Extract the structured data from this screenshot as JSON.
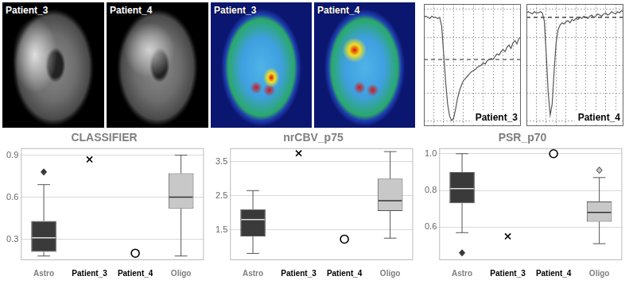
{
  "images": [
    {
      "label": "Patient_3"
    },
    {
      "label": "Patient_4"
    }
  ],
  "perfusion_maps": [
    {
      "label": "Patient_3"
    },
    {
      "label": "Patient_4"
    }
  ],
  "chart_data": [
    {
      "type": "line",
      "title": "Patient_3",
      "color": "#555555",
      "line_style": "solid",
      "grid": true,
      "tick_labels": false,
      "x": [
        0,
        1,
        2,
        3,
        4,
        5,
        6,
        7,
        8,
        9,
        10,
        11,
        12,
        13,
        14,
        15,
        16,
        17,
        18,
        19,
        20,
        21,
        22,
        23,
        24,
        25,
        26,
        27,
        28,
        29,
        30,
        31,
        32,
        33,
        34,
        35,
        36,
        37,
        38,
        39,
        40,
        41,
        42,
        43,
        44,
        45,
        46,
        47,
        48,
        49
      ],
      "values": [
        93,
        94,
        93,
        92,
        94,
        93,
        93,
        92,
        93,
        85,
        60,
        35,
        15,
        4,
        0,
        2,
        10,
        20,
        27,
        32,
        36,
        38,
        40,
        42,
        44,
        45,
        46,
        48,
        49,
        50,
        52,
        51,
        54,
        55,
        56,
        55,
        58,
        60,
        59,
        62,
        64,
        62,
        66,
        68,
        65,
        70,
        72,
        69,
        74,
        75
      ],
      "reference": 55,
      "xlim": [
        0,
        49
      ],
      "xticks": [
        0,
        5,
        10,
        15,
        20,
        25,
        30,
        35,
        40,
        45
      ],
      "ylim": [
        -5,
        105
      ],
      "yticks": [
        0,
        25,
        50,
        75,
        100
      ]
    },
    {
      "type": "line",
      "title": "Patient_4",
      "color": "#555555",
      "line_style": "solid",
      "grid": true,
      "tick_labels": false,
      "x": [
        0,
        1,
        2,
        3,
        4,
        5,
        6,
        7,
        8,
        9,
        10,
        11,
        12,
        13,
        14,
        15,
        16,
        17,
        18,
        19,
        20,
        21,
        22,
        23,
        24,
        25,
        26,
        27,
        28,
        29,
        30,
        31,
        32,
        33,
        34,
        35,
        36,
        37,
        38,
        39,
        40,
        41,
        42,
        43,
        44,
        45,
        46,
        47,
        48,
        49
      ],
      "values": [
        97,
        98,
        97,
        96,
        98,
        97,
        97,
        98,
        97,
        90,
        60,
        25,
        5,
        15,
        45,
        70,
        82,
        86,
        88,
        87,
        89,
        90,
        88,
        91,
        90,
        92,
        91,
        93,
        92,
        94,
        93,
        92,
        94,
        95,
        93,
        94,
        96,
        95,
        94,
        96,
        97,
        95,
        96,
        98,
        97,
        96,
        98,
        97,
        99,
        98
      ],
      "reference": 93,
      "xlim": [
        0,
        49
      ],
      "xticks": [
        0,
        5,
        10,
        15,
        20,
        25,
        30,
        35,
        40,
        45
      ],
      "ylim": [
        -5,
        105
      ],
      "yticks": [
        0,
        25,
        50,
        75,
        100
      ]
    },
    {
      "type": "box",
      "title": "CLASSIFIER",
      "grid": true,
      "categories": [
        "Astro",
        "Patient_3",
        "Patient_4",
        "Oligo"
      ],
      "ylim": [
        0.15,
        0.95
      ],
      "yticks": [
        0.3,
        0.6,
        0.9
      ],
      "boxes": [
        {
          "category": "Astro",
          "min": 0.18,
          "q1": 0.21,
          "median": 0.31,
          "q3": 0.43,
          "max": 0.69,
          "outliers": [
            0.78
          ],
          "color": "#3a3a3a"
        },
        {
          "category": "Oligo",
          "min": 0.18,
          "q1": 0.52,
          "median": 0.6,
          "q3": 0.77,
          "max": 0.9,
          "outliers": [],
          "color": "#c8c8c8"
        }
      ],
      "points": [
        {
          "category": "Patient_3",
          "value": 0.87,
          "marker": "cross"
        },
        {
          "category": "Patient_4",
          "value": 0.2,
          "marker": "circle"
        }
      ]
    },
    {
      "type": "box",
      "title": "nrCBV_p75",
      "grid": true,
      "categories": [
        "Astro",
        "Patient_3",
        "Patient_4",
        "Oligo"
      ],
      "ylim": [
        0.6,
        3.9
      ],
      "yticks": [
        1.5,
        2.5,
        3.5
      ],
      "boxes": [
        {
          "category": "Astro",
          "min": 0.8,
          "q1": 1.3,
          "median": 1.8,
          "q3": 2.1,
          "max": 2.65,
          "outliers": [],
          "color": "#3a3a3a"
        },
        {
          "category": "Oligo",
          "min": 1.25,
          "q1": 2.05,
          "median": 2.35,
          "q3": 3.0,
          "max": 3.8,
          "outliers": [],
          "color": "#c8c8c8"
        }
      ],
      "points": [
        {
          "category": "Patient_3",
          "value": 3.75,
          "marker": "cross"
        },
        {
          "category": "Patient_4",
          "value": 1.22,
          "marker": "circle"
        }
      ]
    },
    {
      "type": "box",
      "title": "PSR_p70",
      "grid": true,
      "categories": [
        "Astro",
        "Patient_3",
        "Patient_4",
        "Oligo"
      ],
      "ylim": [
        0.42,
        1.03
      ],
      "yticks": [
        0.6,
        0.8,
        {
          "value": 1,
          "label": "1.0"
        }
      ],
      "boxes": [
        {
          "category": "Astro",
          "min": 0.57,
          "q1": 0.73,
          "median": 0.81,
          "q3": 0.9,
          "max": 1.0,
          "outliers": [
            0.46
          ],
          "color": "#3a3a3a"
        },
        {
          "category": "Oligo",
          "min": 0.51,
          "q1": 0.63,
          "median": 0.68,
          "q3": 0.74,
          "max": 0.87,
          "outliers": [
            0.91
          ],
          "color": "#c8c8c8"
        }
      ],
      "points": [
        {
          "category": "Patient_3",
          "value": 0.55,
          "marker": "cross"
        },
        {
          "category": "Patient_4",
          "value": 1,
          "marker": "circle"
        }
      ]
    }
  ]
}
